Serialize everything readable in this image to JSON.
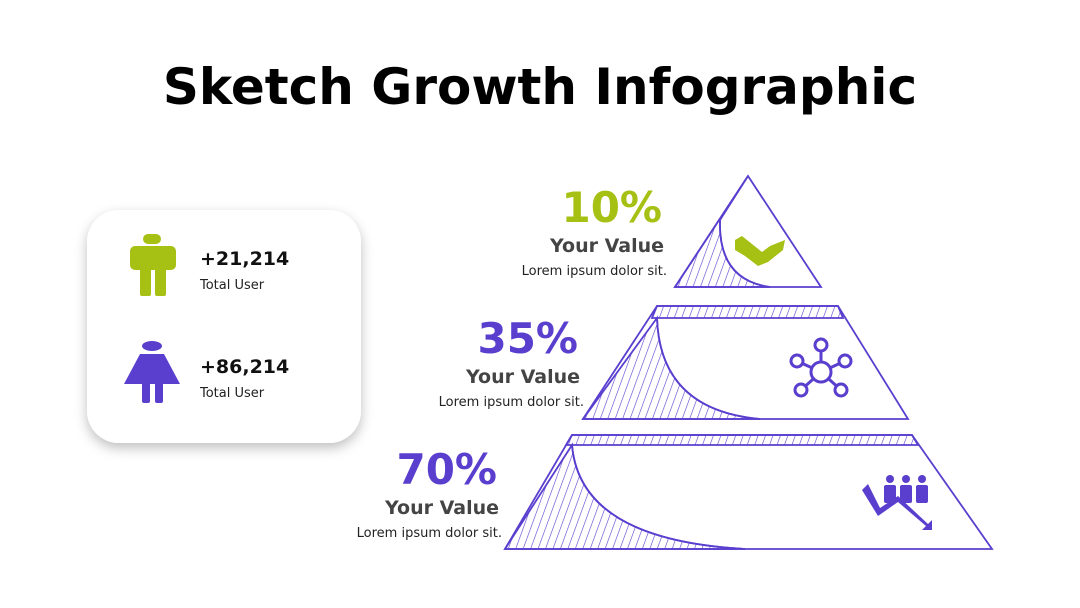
{
  "header": {
    "title": "Sketch Growth Infographic"
  },
  "stats": [
    {
      "value": "+21,214",
      "label": "Total User"
    },
    {
      "value": "+86,214",
      "label": "Total User"
    }
  ],
  "levels": [
    {
      "percent": "10%",
      "heading": "Your Value",
      "text": "Lorem ipsum dolor sit."
    },
    {
      "percent": "35%",
      "heading": "Your Value",
      "text": "Lorem ipsum dolor sit."
    },
    {
      "percent": "70%",
      "heading": "Your Value",
      "text": "Lorem ipsum dolor sit."
    }
  ]
}
